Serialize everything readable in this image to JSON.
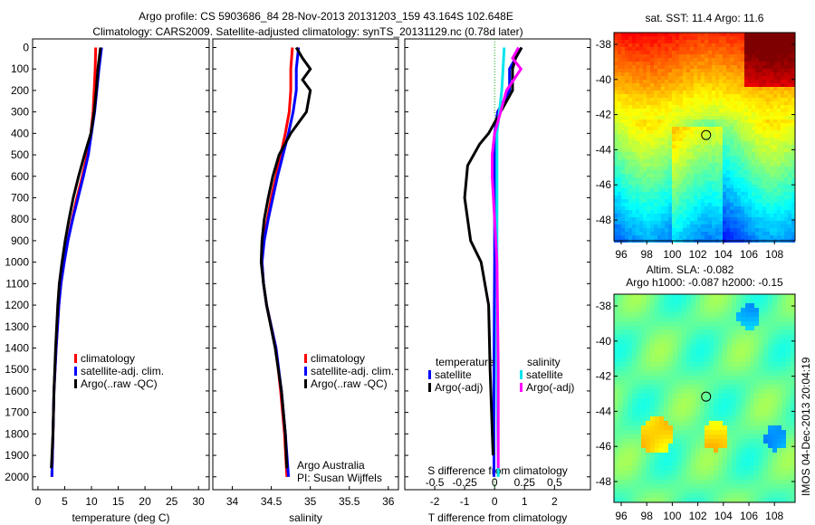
{
  "title_line1": "Argo profile: CS 5903686_84 28-Nov-2013 20131203_159 43.164S 102.648E",
  "title_line2": "Climatology: CARS2009. Satellite-adjusted climatology: synTS_20131129.nc (0.78d later)",
  "colors": {
    "clim": "#ff0000",
    "sat": "#0000ff",
    "argo": "#000000",
    "s_sat": "#00e5ee",
    "s_argo": "#ff00ff"
  },
  "chart_data": [
    {
      "type": "line",
      "name": "temperature",
      "xlabel": "temperature (deg C)",
      "xlim": [
        -1,
        32
      ],
      "ylim": [
        2060,
        -40
      ],
      "xticks": [
        0,
        5,
        10,
        15,
        20,
        25,
        30
      ],
      "legend": [
        "climatology",
        "satellite-adj. clim.",
        "Argo(..raw -QC)"
      ],
      "series": [
        {
          "name": "climatology",
          "color": "clim",
          "depth": [
            0,
            100,
            200,
            300,
            400,
            500,
            600,
            700,
            800,
            900,
            1000,
            1100,
            1200,
            1400,
            1600,
            1800,
            2000
          ],
          "values": [
            10.8,
            10.7,
            10.5,
            10.3,
            9.9,
            9.2,
            8.3,
            7.3,
            6.4,
            5.6,
            4.9,
            4.3,
            3.9,
            3.4,
            3.0,
            2.8,
            2.6
          ]
        },
        {
          "name": "satellite-adj. clim.",
          "color": "sat",
          "depth": [
            0,
            100,
            200,
            300,
            400,
            500,
            600,
            700,
            800,
            900,
            1000,
            1100,
            1200,
            1400,
            1600,
            1800,
            2000
          ],
          "values": [
            11.9,
            11.4,
            11.0,
            10.6,
            10.0,
            9.4,
            8.5,
            7.5,
            6.5,
            5.6,
            4.9,
            4.3,
            3.9,
            3.4,
            3.0,
            2.8,
            2.6
          ]
        },
        {
          "name": "Argo",
          "color": "argo",
          "depth": [
            0,
            100,
            200,
            300,
            400,
            500,
            600,
            700,
            800,
            900,
            1000,
            1100,
            1200,
            1400,
            1600,
            1800,
            1960
          ],
          "values": [
            11.7,
            11.2,
            10.9,
            10.5,
            9.9,
            8.7,
            7.6,
            6.6,
            5.8,
            5.1,
            4.5,
            4.0,
            3.7,
            3.3,
            3.0,
            2.8,
            2.5
          ]
        }
      ]
    },
    {
      "type": "line",
      "name": "salinity",
      "xlabel": "salinity",
      "xlim": [
        33.75,
        36.13
      ],
      "ylim": [
        2060,
        -40
      ],
      "xticks": [
        34,
        34.5,
        35,
        35.5,
        36
      ],
      "legend": [
        "climatology",
        "satellite-adj. clim.",
        "Argo(..raw -QC)"
      ],
      "annotation": [
        "Argo Australia",
        "PI: Susan Wijffels"
      ],
      "series": [
        {
          "name": "climatology",
          "color": "clim",
          "depth": [
            0,
            100,
            200,
            300,
            400,
            500,
            600,
            700,
            800,
            900,
            1000,
            1100,
            1200,
            1300,
            1400,
            1600,
            1800,
            2000
          ],
          "values": [
            34.77,
            34.75,
            34.75,
            34.73,
            34.68,
            34.62,
            34.56,
            34.5,
            34.45,
            34.4,
            34.38,
            34.4,
            34.44,
            34.5,
            34.56,
            34.62,
            34.67,
            34.7
          ]
        },
        {
          "name": "satellite-adj. clim.",
          "color": "sat",
          "depth": [
            0,
            100,
            200,
            300,
            400,
            500,
            600,
            700,
            800,
            900,
            1000,
            1100,
            1200,
            1300,
            1400,
            1600,
            1800,
            2000
          ],
          "values": [
            34.85,
            34.82,
            34.82,
            34.78,
            34.72,
            34.65,
            34.58,
            34.52,
            34.46,
            34.41,
            34.38,
            34.4,
            34.44,
            34.5,
            34.56,
            34.63,
            34.68,
            34.72
          ]
        },
        {
          "name": "Argo",
          "color": "argo",
          "depth": [
            0,
            50,
            100,
            150,
            200,
            300,
            400,
            500,
            600,
            700,
            800,
            900,
            1000,
            1100,
            1200,
            1400,
            1600,
            1800,
            1960
          ],
          "values": [
            34.82,
            34.9,
            35.0,
            34.9,
            35.0,
            34.95,
            34.75,
            34.6,
            34.52,
            34.46,
            34.41,
            34.38,
            34.37,
            34.4,
            34.44,
            34.55,
            34.63,
            34.68,
            34.7
          ]
        }
      ]
    },
    {
      "type": "line",
      "name": "differences",
      "xlabel": "T difference from climatology",
      "x2label": "S difference from climatology",
      "xlim": [
        -3,
        3.2
      ],
      "ylim": [
        2060,
        -40
      ],
      "xticks": [
        -2,
        -1,
        0,
        1,
        2
      ],
      "x2ticks": [
        -0.5,
        -0.25,
        0,
        0.25,
        0.5
      ],
      "legend_t_title": "temperature",
      "legend_s_title": "salinity",
      "legend": [
        "satellite",
        "Argo(-adj)"
      ],
      "series": [
        {
          "name": "T satellite",
          "color": "sat",
          "scale": "T",
          "depth": [
            0,
            50,
            100,
            200,
            300,
            400,
            600,
            1000,
            1500,
            2000
          ],
          "values": [
            0.9,
            0.7,
            0.5,
            0.5,
            0.1,
            0.0,
            0.0,
            0.0,
            -0.02,
            -0.02
          ]
        },
        {
          "name": "T Argo(-adj)",
          "color": "argo",
          "scale": "T",
          "depth": [
            0,
            50,
            100,
            200,
            300,
            400,
            450,
            550,
            700,
            900,
            1000,
            1200,
            1500,
            1900
          ],
          "values": [
            0.9,
            0.7,
            0.6,
            0.6,
            0.2,
            -0.2,
            -0.5,
            -0.9,
            -1.0,
            -0.8,
            -0.45,
            -0.2,
            -0.15,
            -0.05
          ]
        },
        {
          "name": "S satellite",
          "color": "s_sat",
          "scale": "S",
          "depth": [
            0,
            100,
            200,
            400,
            800,
            1500,
            2000
          ],
          "values": [
            0.08,
            0.07,
            0.06,
            0.02,
            0.02,
            0.02,
            0.03
          ]
        },
        {
          "name": "S Argo(-adj)",
          "color": "s_argo",
          "scale": "S",
          "depth": [
            0,
            50,
            100,
            200,
            300,
            400,
            500,
            600,
            800,
            1000,
            1500,
            1960
          ],
          "values": [
            0.2,
            0.15,
            0.22,
            0.1,
            0.05,
            0.0,
            -0.02,
            -0.02,
            0.0,
            0.02,
            0.03,
            0.03
          ]
        }
      ]
    }
  ],
  "depth_ticks": [
    0,
    100,
    200,
    300,
    400,
    500,
    600,
    700,
    800,
    900,
    1000,
    1100,
    1200,
    1300,
    1400,
    1500,
    1600,
    1700,
    1800,
    1900,
    2000
  ],
  "map1": {
    "title": "sat. SST: 11.4 Argo: 11.6",
    "lat_ticks": [
      -38,
      -40,
      -42,
      -44,
      -46,
      -48
    ],
    "lon_ticks": [
      96,
      98,
      100,
      102,
      104,
      106,
      108
    ],
    "float_lon": 102.648,
    "float_lat": -43.164
  },
  "map2": {
    "title1": "Altim. SLA: -0.082",
    "title2": "Argo h1000: -0.087 h2000: -0.15",
    "lat_ticks": [
      -38,
      -40,
      -42,
      -44,
      -46,
      -48
    ],
    "lon_ticks": [
      96,
      98,
      100,
      102,
      104,
      106,
      108
    ],
    "float_lon": 102.648,
    "float_lat": -43.164
  },
  "side_label": "IMOS 04-Dec-2013 20:04:19"
}
